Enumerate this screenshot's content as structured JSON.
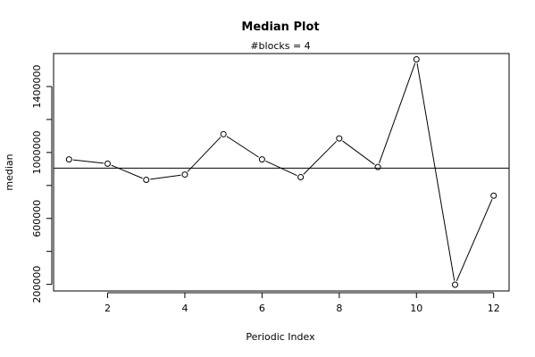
{
  "chart_data": {
    "type": "line",
    "title": "Median Plot",
    "subtitle": "#blocks =  4",
    "xlabel": "Periodic Index",
    "ylabel": "median",
    "x": [
      1,
      2,
      3,
      4,
      5,
      6,
      7,
      8,
      9,
      10,
      11,
      12
    ],
    "values": [
      958000,
      932000,
      834000,
      866000,
      1111000,
      958000,
      850000,
      1085000,
      912000,
      1565000,
      198000,
      738000
    ],
    "xlim": [
      0.6,
      12.4
    ],
    "ylim": [
      160000,
      1600000
    ],
    "x_ticks": [
      2,
      4,
      6,
      8,
      10,
      12
    ],
    "y_ticks": [
      200000,
      600000,
      1000000,
      1400000
    ],
    "y_minor_ticks": [
      400000,
      800000,
      1200000
    ],
    "reference_line": 905000,
    "grid": false,
    "legend": "none"
  }
}
